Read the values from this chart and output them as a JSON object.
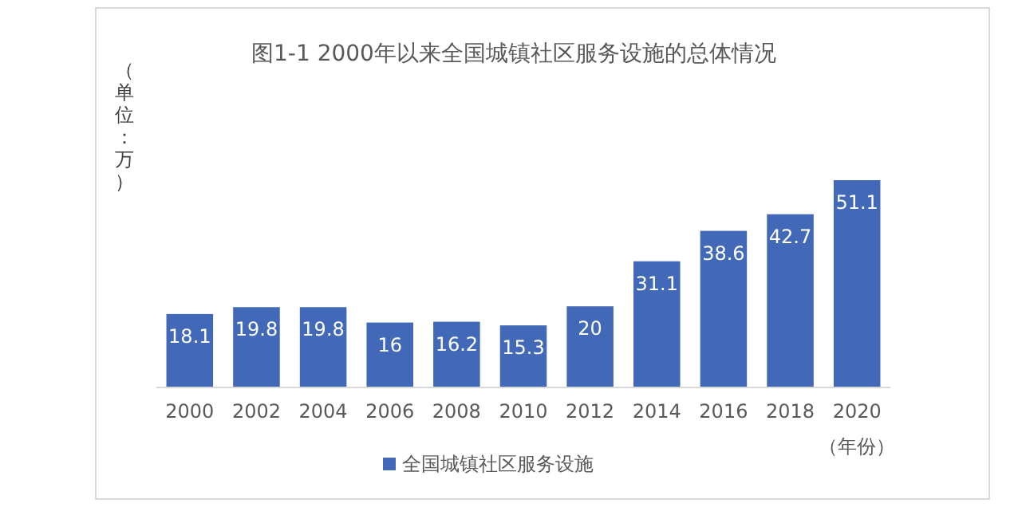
{
  "chart_data": {
    "type": "bar",
    "title": "图1-1  2000年以来全国城镇社区服务设施的总体情况",
    "ylabel": "（单位：万）",
    "xlabel": "（年份）",
    "categories": [
      "2000",
      "2002",
      "2004",
      "2006",
      "2008",
      "2010",
      "2012",
      "2014",
      "2016",
      "2018",
      "2020"
    ],
    "series": [
      {
        "name": "全国城镇社区服务设施",
        "color": "#4169b8",
        "values": [
          18.1,
          19.8,
          19.8,
          16,
          16.2,
          15.3,
          20,
          31.1,
          38.6,
          42.7,
          51.1
        ]
      }
    ],
    "data_labels": true,
    "legend": "bottom"
  }
}
